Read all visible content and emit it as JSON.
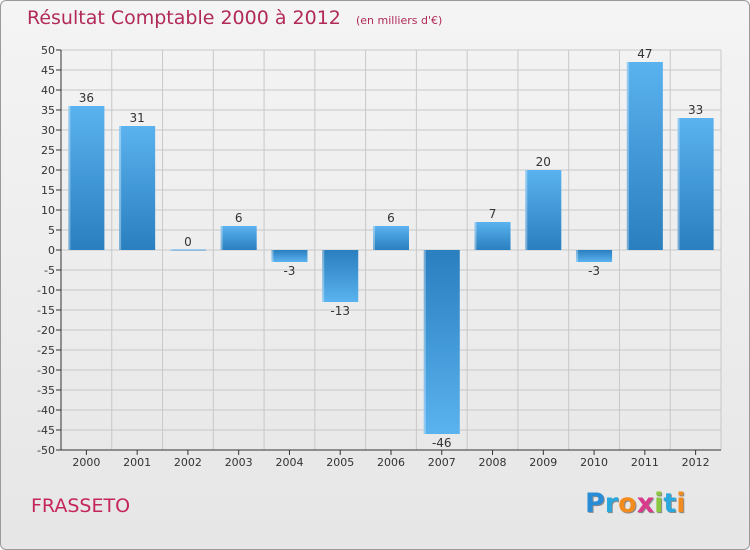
{
  "title": "Résultat Comptable 2000 à 2012",
  "subtitle": "(en milliers d'€)",
  "commune": "FRASSETO",
  "logo": {
    "text": "Proxiti",
    "letter_colors": [
      "#2b8cd6",
      "#2aa8de",
      "#f28c1e",
      "#d93a8c",
      "#8cc63f",
      "#2aa8de",
      "#f28c1e"
    ]
  },
  "colors": {
    "bar_light": "#5ab2ee",
    "bar_dark": "#2a7fbf",
    "title": "#b12a5a",
    "grid": "#c8c8c8",
    "axis": "#333333"
  },
  "chart_data": {
    "type": "bar",
    "title": "Résultat Comptable 2000 à 2012",
    "xlabel": "",
    "ylabel": "",
    "categories": [
      "2000",
      "2001",
      "2002",
      "2003",
      "2004",
      "2005",
      "2006",
      "2007",
      "2008",
      "2009",
      "2010",
      "2011",
      "2012"
    ],
    "values": [
      36,
      31,
      0,
      6,
      -3,
      -13,
      6,
      -46,
      7,
      20,
      -3,
      47,
      33
    ],
    "ylim": [
      -50,
      50
    ],
    "ytick_step": 5,
    "grid": true
  }
}
